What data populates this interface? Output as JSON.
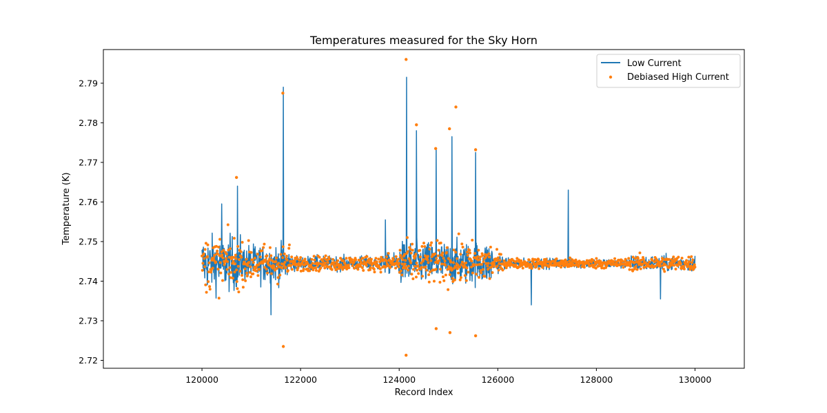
{
  "chart_data": {
    "type": "line",
    "title": "Temperatures measured for the Sky Horn",
    "xlabel": "Record Index",
    "ylabel": "Temperature (K)",
    "xlim": [
      118000,
      131000
    ],
    "ylim": [
      2.718,
      2.7985
    ],
    "xticks": [
      120000,
      122000,
      124000,
      126000,
      128000,
      130000
    ],
    "yticks": [
      2.72,
      2.73,
      2.74,
      2.75,
      2.76,
      2.77,
      2.78,
      2.79
    ],
    "ytick_labels": [
      "2.72",
      "2.73",
      "2.74",
      "2.75",
      "2.76",
      "2.77",
      "2.78",
      "2.79"
    ],
    "legend_position": "upper right",
    "series": [
      {
        "name": "Low Current",
        "style": "line",
        "color": "#1f77b4",
        "baseline": 2.7445,
        "x_range": [
          120000,
          130000
        ],
        "notable_peaks": [
          {
            "x": 120400,
            "y": 2.7595
          },
          {
            "x": 120720,
            "y": 2.764
          },
          {
            "x": 121650,
            "y": 2.789
          },
          {
            "x": 121400,
            "y": 2.7315
          },
          {
            "x": 123720,
            "y": 2.7555
          },
          {
            "x": 124150,
            "y": 2.7915
          },
          {
            "x": 124350,
            "y": 2.778
          },
          {
            "x": 124750,
            "y": 2.7735
          },
          {
            "x": 125070,
            "y": 2.7765
          },
          {
            "x": 125550,
            "y": 2.7725
          },
          {
            "x": 126680,
            "y": 2.734
          },
          {
            "x": 127430,
            "y": 2.763
          },
          {
            "x": 129300,
            "y": 2.7355
          }
        ]
      },
      {
        "name": "Debiased High Current",
        "style": "scatter",
        "color": "#ff7f0e",
        "baseline": 2.7445,
        "x_range": [
          120000,
          130000
        ],
        "notable_peaks": [
          {
            "x": 120700,
            "y": 2.7662
          },
          {
            "x": 121640,
            "y": 2.7875
          },
          {
            "x": 121650,
            "y": 2.7235
          },
          {
            "x": 124140,
            "y": 2.796
          },
          {
            "x": 124140,
            "y": 2.7213
          },
          {
            "x": 124350,
            "y": 2.7795
          },
          {
            "x": 124740,
            "y": 2.7735
          },
          {
            "x": 124750,
            "y": 2.728
          },
          {
            "x": 125020,
            "y": 2.7785
          },
          {
            "x": 125030,
            "y": 2.727
          },
          {
            "x": 125150,
            "y": 2.784
          },
          {
            "x": 125550,
            "y": 2.7732
          },
          {
            "x": 125550,
            "y": 2.7262
          }
        ]
      }
    ]
  }
}
